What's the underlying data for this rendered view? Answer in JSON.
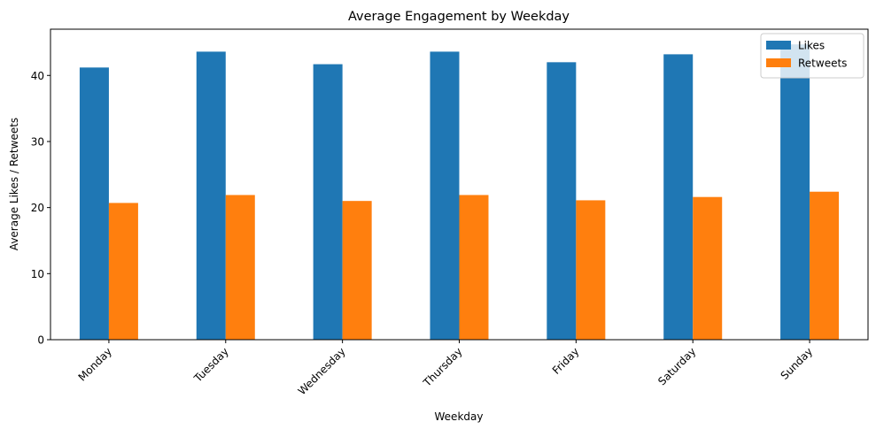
{
  "chart_data": {
    "type": "bar",
    "title": "Average Engagement by Weekday",
    "xlabel": "Weekday",
    "ylabel": "Average Likes / Retweets",
    "categories": [
      "Monday",
      "Tuesday",
      "Wednesday",
      "Thursday",
      "Friday",
      "Saturday",
      "Sunday"
    ],
    "series": [
      {
        "name": "Likes",
        "color": "#1f77b4",
        "values": [
          41.2,
          43.6,
          41.7,
          43.6,
          42.0,
          43.2,
          44.7
        ]
      },
      {
        "name": "Retweets",
        "color": "#ff7f0e",
        "values": [
          20.7,
          21.9,
          21.0,
          21.9,
          21.1,
          21.6,
          22.4
        ]
      }
    ],
    "ylim": [
      0,
      47
    ],
    "yticks": [
      0,
      10,
      20,
      30,
      40
    ],
    "grid": false,
    "legend": "top-right"
  }
}
